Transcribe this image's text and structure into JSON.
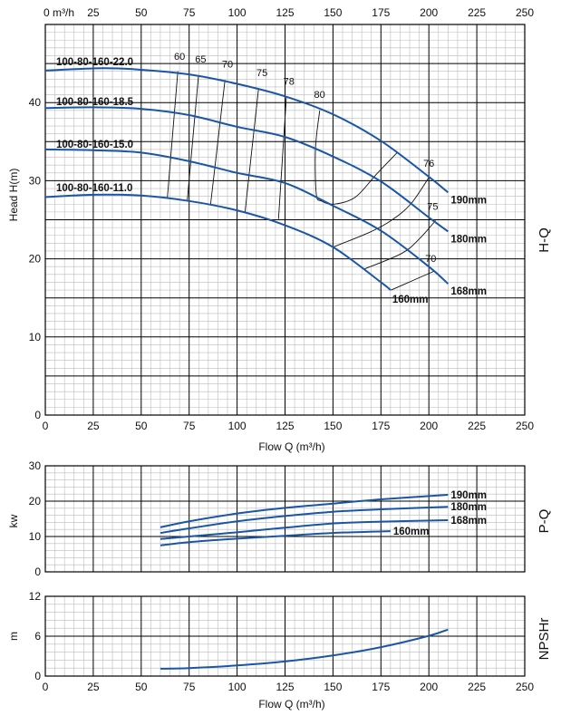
{
  "chart_data": [
    {
      "type": "line",
      "panel_label": "H-Q",
      "xlabel": "Flow Q (m³/h)",
      "ylabel": "Head H(m)",
      "top_axis_first_label": "0 m³/h",
      "xlim": [
        0,
        250
      ],
      "ylim": [
        0,
        50
      ],
      "xticks": [
        0,
        25,
        50,
        75,
        100,
        125,
        150,
        175,
        200,
        225,
        250
      ],
      "yticks": [
        0,
        10,
        20,
        30,
        40
      ],
      "grid": true,
      "colors": {
        "curve": "#1a56a6",
        "efficiency": "#111111",
        "major_grid": "#000000",
        "minor_grid": "#bbbbbb"
      },
      "model_labels": [
        "100-80-160-22.0",
        "100-80-160-18.5",
        "100-80-160-15.0",
        "100-80-160-11.0"
      ],
      "series": [
        {
          "name": "190mm",
          "x": [
            0,
            30,
            50,
            75,
            100,
            125,
            150,
            175,
            200,
            210
          ],
          "y": [
            44.1,
            44.4,
            44.2,
            43.6,
            42.4,
            40.8,
            38.5,
            35.1,
            30.5,
            28.5
          ]
        },
        {
          "name": "180mm",
          "x": [
            0,
            25,
            50,
            75,
            100,
            125,
            150,
            175,
            200,
            210
          ],
          "y": [
            39.3,
            39.4,
            39.2,
            38.4,
            36.9,
            35.6,
            33.1,
            29.9,
            25.3,
            23.5
          ]
        },
        {
          "name": "168mm",
          "x": [
            0,
            25,
            50,
            75,
            100,
            125,
            150,
            175,
            200,
            210
          ],
          "y": [
            34.0,
            33.9,
            33.6,
            32.5,
            31.0,
            29.7,
            26.8,
            23.6,
            19.0,
            16.8
          ]
        },
        {
          "name": "160mm",
          "x": [
            0,
            25,
            50,
            75,
            100,
            125,
            150,
            175,
            180
          ],
          "y": [
            27.9,
            28.2,
            28.1,
            27.4,
            26.2,
            24.3,
            21.5,
            17.0,
            16.0
          ]
        }
      ],
      "efficiency_lines": [
        {
          "label": "60",
          "x": [
            69.1,
            63.6
          ],
          "y": [
            44.0,
            27.7
          ],
          "label_at": [
            70,
            45.5
          ]
        },
        {
          "label": "65",
          "x": [
            79.9,
            74.0
          ],
          "y": [
            43.5,
            27.4
          ],
          "label_at": [
            81,
            45.1
          ]
        },
        {
          "label": "70",
          "x": [
            93.7,
            86.2
          ],
          "y": [
            42.9,
            27.0
          ],
          "label_at": [
            95,
            44.5
          ]
        },
        {
          "label": "75",
          "x": [
            111.2,
            104.1
          ],
          "y": [
            41.8,
            25.9
          ],
          "label_at": [
            113,
            43.4
          ]
        },
        {
          "label": "78",
          "x": [
            125.7,
            121.6
          ],
          "y": [
            40.7,
            25.1
          ],
          "label_at": [
            127,
            42.3
          ]
        },
        {
          "label": "80",
          "x": [
            143.1,
            140.9,
            141.3,
            144.0,
            150.6,
            161.7,
            172.9,
            183.5
          ],
          "y": [
            39.0,
            34.2,
            28.3,
            27.4,
            27.0,
            27.9,
            30.9,
            33.6
          ],
          "label_at": [
            143,
            40.6
          ]
        },
        {
          "label": "76",
          "x": [
            200.2,
            190.5,
            180.3,
            169.1,
            150.0
          ],
          "y": [
            30.5,
            27.0,
            24.9,
            23.4,
            21.5
          ],
          "label_at": [
            200,
            31.8
          ]
        },
        {
          "label": "75",
          "x": [
            203.5,
            195.2,
            185.9,
            166.4
          ],
          "y": [
            24.9,
            22.6,
            20.7,
            18.7
          ],
          "label_at": [
            202,
            26.3
          ]
        },
        {
          "label": "70",
          "x": [
            202.6,
            191.4,
            180.3
          ],
          "y": [
            18.4,
            17.2,
            16.0
          ],
          "label_at": [
            201,
            19.6
          ]
        }
      ]
    },
    {
      "type": "line",
      "panel_label": "P-Q",
      "xlabel": "",
      "ylabel": "kw",
      "xlim": [
        0,
        250
      ],
      "ylim": [
        0,
        30
      ],
      "yticks": [
        0,
        10,
        20,
        30
      ],
      "grid": true,
      "series": [
        {
          "name": "190mm",
          "x": [
            60,
            75,
            100,
            125,
            150,
            175,
            210
          ],
          "y": [
            12.6,
            14.3,
            16.5,
            18.1,
            19.3,
            20.5,
            21.8
          ]
        },
        {
          "name": "180mm",
          "x": [
            60,
            75,
            100,
            125,
            150,
            175,
            210
          ],
          "y": [
            11.0,
            12.3,
            14.3,
            15.8,
            17.0,
            17.7,
            18.4
          ]
        },
        {
          "name": "168mm",
          "x": [
            60,
            75,
            100,
            125,
            150,
            175,
            210
          ],
          "y": [
            9.3,
            10.0,
            11.2,
            12.5,
            13.7,
            14.2,
            14.6
          ]
        },
        {
          "name": "160mm",
          "x": [
            60,
            75,
            100,
            125,
            150,
            180
          ],
          "y": [
            7.5,
            8.4,
            9.4,
            10.2,
            11.0,
            11.5
          ]
        }
      ]
    },
    {
      "type": "line",
      "panel_label": "NPSHr",
      "xlabel": "Flow Q (m³/h)",
      "ylabel": "m",
      "xlim": [
        0,
        250
      ],
      "ylim": [
        0,
        12
      ],
      "xticks": [
        0,
        25,
        50,
        75,
        100,
        125,
        150,
        175,
        200,
        225,
        250
      ],
      "yticks": [
        0,
        6,
        12
      ],
      "grid": true,
      "series": [
        {
          "x": [
            60,
            75,
            100,
            125,
            150,
            175,
            200,
            210
          ],
          "y": [
            1.1,
            1.2,
            1.6,
            2.2,
            3.1,
            4.35,
            6.05,
            7.0
          ]
        }
      ]
    }
  ]
}
